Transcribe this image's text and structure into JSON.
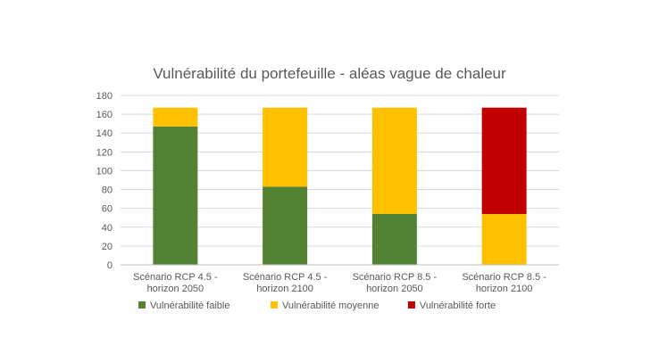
{
  "chart_data": {
    "type": "bar",
    "stacked": true,
    "title": "Vulnérabilité du portefeuille - aléas vague de chaleur",
    "xlabel": "",
    "ylabel": "",
    "ylim": [
      0,
      180
    ],
    "yticks": [
      0,
      20,
      40,
      60,
      80,
      100,
      120,
      140,
      160,
      180
    ],
    "grid": true,
    "legend_position": "bottom",
    "categories": [
      [
        "Scénario RCP 4.5 -",
        "horizon 2050"
      ],
      [
        "Scénario RCP 4.5 -",
        "horizon 2100"
      ],
      [
        "Scénario RCP 8.5 -",
        "horizon 2050"
      ],
      [
        "Scénario RCP 8.5 -",
        "horizon  2100"
      ]
    ],
    "series": [
      {
        "name": "Vulnérabilité faible",
        "color": "#548235",
        "values": [
          147,
          83,
          54,
          0
        ]
      },
      {
        "name": "Vulnérabilité moyenne",
        "color": "#FFC000",
        "values": [
          20,
          84,
          113,
          54
        ]
      },
      {
        "name": "Vulnérabilité forte",
        "color": "#C00000",
        "values": [
          0,
          0,
          0,
          113
        ]
      }
    ]
  }
}
